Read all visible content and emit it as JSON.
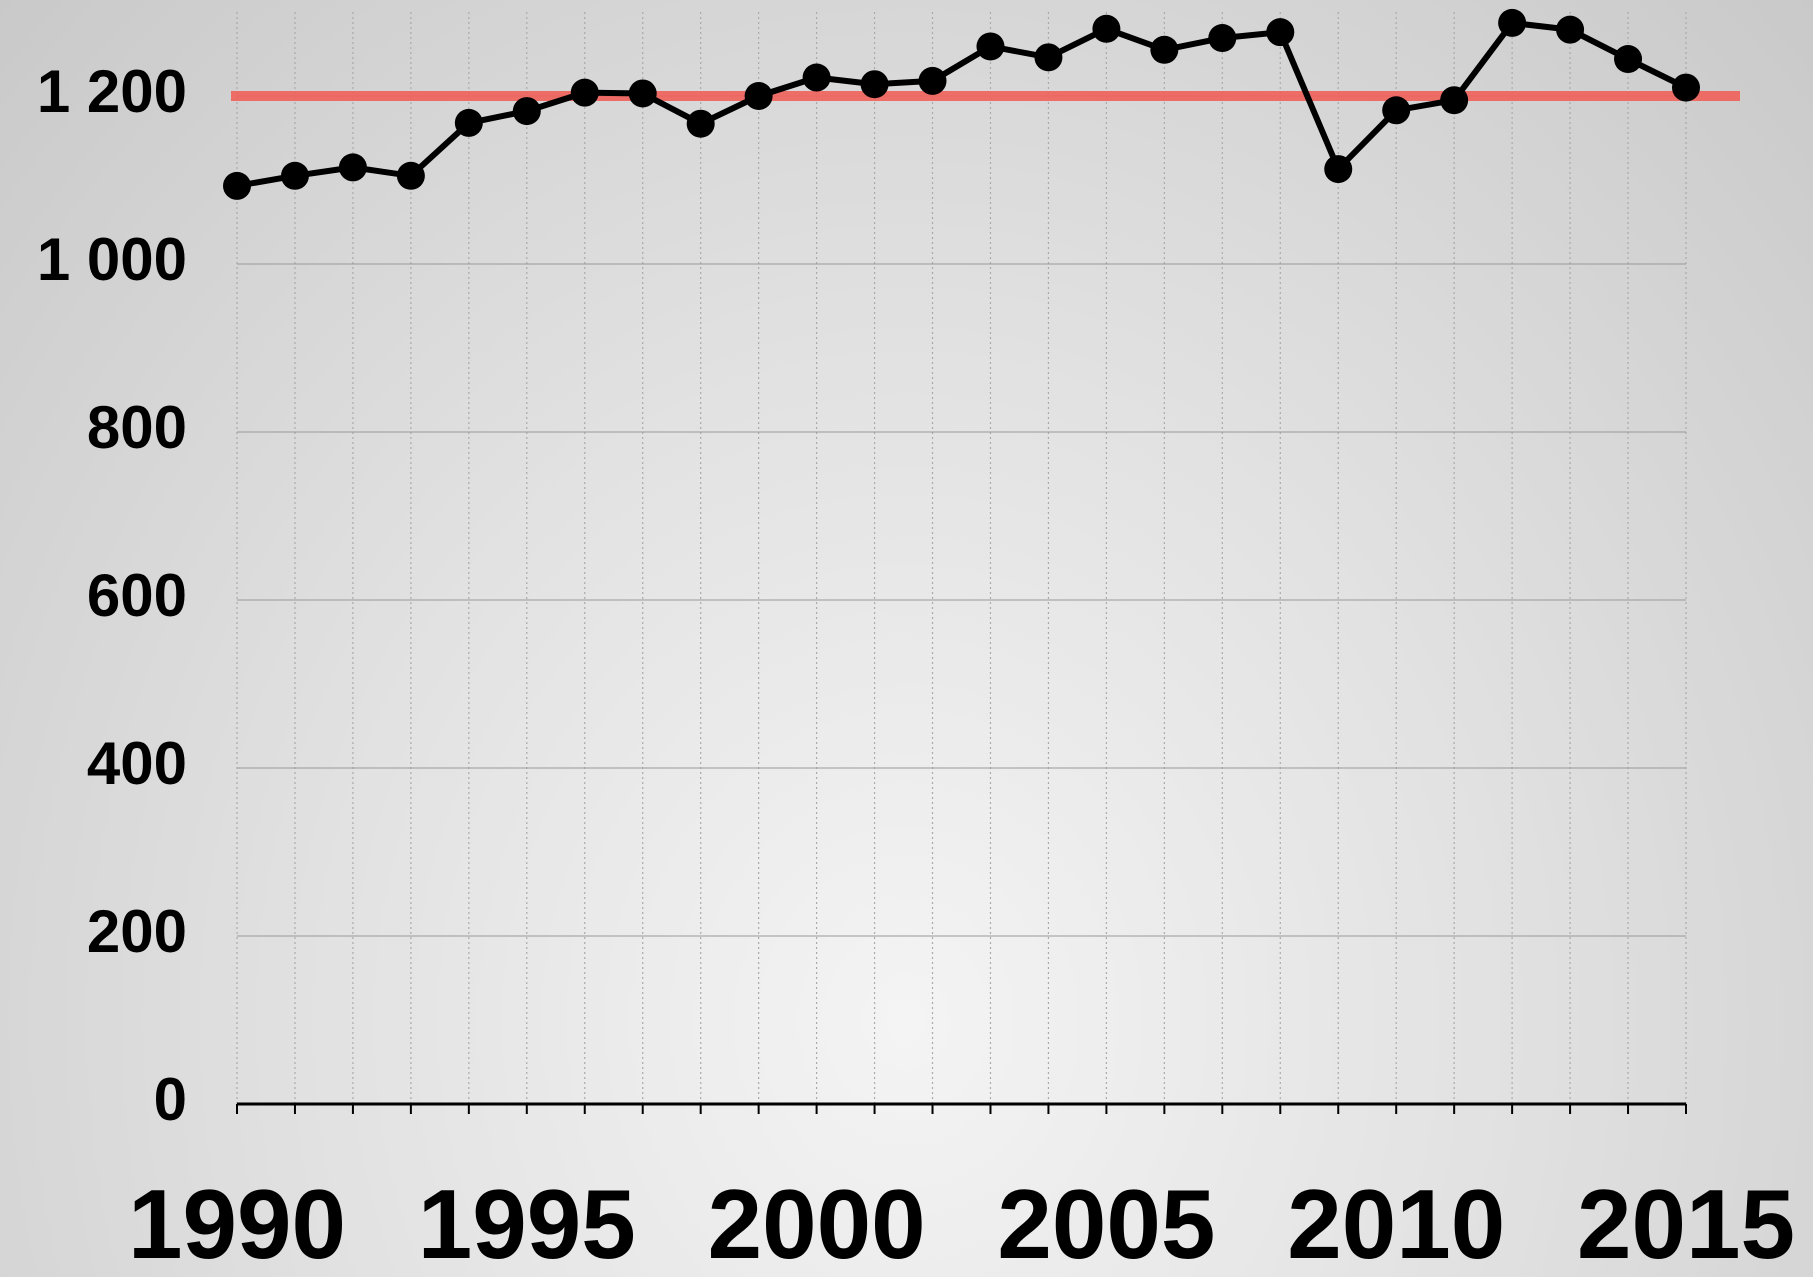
{
  "chart_data": {
    "type": "line",
    "x": [
      1990,
      1991,
      1992,
      1993,
      1994,
      1995,
      1996,
      1997,
      1998,
      1999,
      2000,
      2001,
      2002,
      2003,
      2004,
      2005,
      2006,
      2007,
      2008,
      2009,
      2010,
      2011,
      2012,
      2013,
      2014,
      2015
    ],
    "series": [
      {
        "color": "#000000",
        "values": [
          1093,
          1105,
          1115,
          1105,
          1168,
          1182,
          1204,
          1203,
          1167,
          1200,
          1222,
          1214,
          1218,
          1259,
          1246,
          1280,
          1255,
          1269,
          1276,
          1113,
          1183,
          1195,
          1287,
          1279,
          1244,
          1210
        ]
      }
    ],
    "reference_line": {
      "value": 1200,
      "color": "#f0605a"
    },
    "xlim": [
      1990,
      2015
    ],
    "xticks": [
      1990,
      1995,
      2000,
      2005,
      2010,
      2015
    ],
    "ylim": [
      0,
      1300
    ],
    "yticks": [
      0,
      200,
      400,
      600,
      800,
      {
        "value": 1000,
        "label": "1 000"
      },
      {
        "value": 1200,
        "label": "1 200"
      }
    ],
    "grid": true
  }
}
